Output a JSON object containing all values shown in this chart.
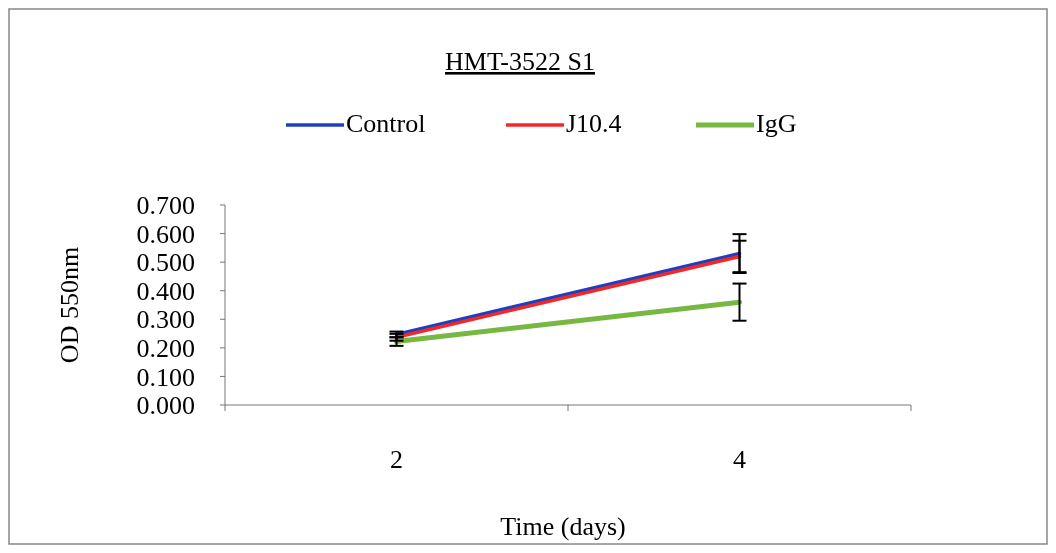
{
  "chart_data": {
    "type": "line",
    "title": "HMT-3522 S1",
    "xlabel": "Time (days)",
    "ylabel": "OD 550nm",
    "categories": [
      "2",
      "4"
    ],
    "series": [
      {
        "name": "Control",
        "color": "#1f3fbf",
        "values": [
          0.247,
          0.53
        ],
        "errors": [
          0.01,
          0.068
        ]
      },
      {
        "name": "J10.4",
        "color": "#f02828",
        "values": [
          0.237,
          0.52
        ],
        "errors": [
          0.012,
          0.055
        ]
      },
      {
        "name": "IgG",
        "color": "#77b843",
        "values": [
          0.222,
          0.36
        ],
        "errors": [
          0.015,
          0.065
        ]
      }
    ],
    "ylim": [
      0,
      0.7
    ],
    "yticks": [
      {
        "value": 0,
        "label": "0.000"
      },
      {
        "value": 0.1,
        "label": "0.100"
      },
      {
        "value": 0.2,
        "label": "0.200"
      },
      {
        "value": 0.3,
        "label": "0.300"
      },
      {
        "value": 0.4,
        "label": "0.400"
      },
      {
        "value": 0.5,
        "label": "0.500"
      },
      {
        "value": 0.6,
        "label": "0.600"
      },
      {
        "value": 0.7,
        "label": "0.700"
      }
    ],
    "legend": "top",
    "grid": false,
    "marker": "none",
    "line_style": "solid"
  }
}
